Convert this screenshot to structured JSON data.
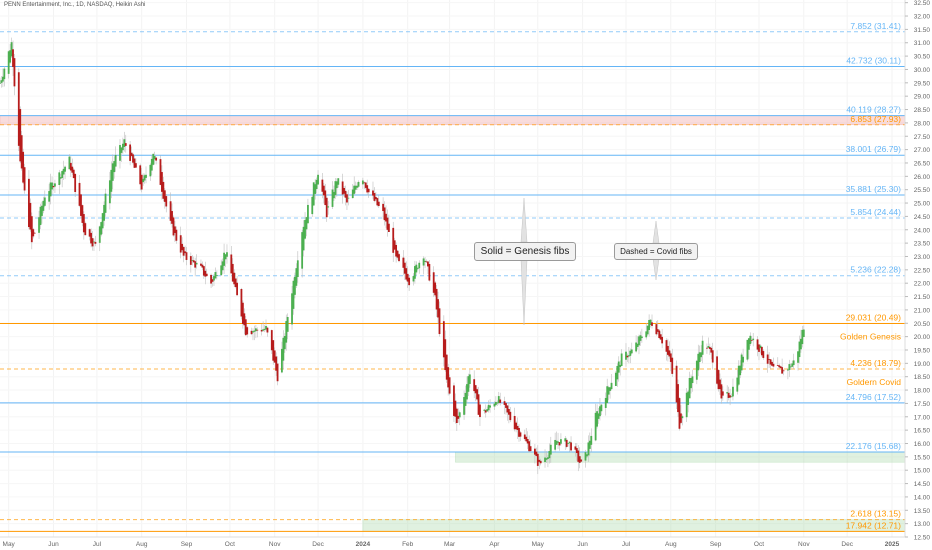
{
  "title": "PENN Entertainment, Inc., 1D, NASDAQ, Heikin Ashi",
  "chart_data": {
    "type": "candlestick",
    "symbol": "PENN",
    "interval": "1D",
    "exchange": "NASDAQ",
    "style": "Heikin Ashi",
    "ylim": [
      12.5,
      32.6
    ],
    "y_ticks": [
      "32.50",
      "32.00",
      "31.50",
      "31.00",
      "30.50",
      "30.00",
      "29.50",
      "29.00",
      "28.50",
      "28.00",
      "27.50",
      "27.00",
      "26.50",
      "26.00",
      "25.50",
      "25.00",
      "24.50",
      "24.00",
      "23.50",
      "23.00",
      "22.50",
      "22.00",
      "21.50",
      "21.00",
      "20.50",
      "20.00",
      "19.50",
      "19.00",
      "18.50",
      "18.00",
      "17.50",
      "17.00",
      "16.50",
      "16.00",
      "15.50",
      "15.00",
      "14.50",
      "14.00",
      "13.50",
      "13.00",
      "12.50"
    ],
    "x_ticks": [
      "May",
      "Jun",
      "Jul",
      "Aug",
      "Sep",
      "Oct",
      "Nov",
      "Dec",
      "2024",
      "Feb",
      "Mar",
      "Apr",
      "May",
      "Jun",
      "Jul",
      "Aug",
      "Sep",
      "Oct",
      "Nov",
      "Dec",
      "2025"
    ],
    "x_tick_values": [
      "2023-05-01",
      "2023-06-01",
      "2023-07-01",
      "2023-08-01",
      "2023-09-01",
      "2023-10-01",
      "2023-11-01",
      "2023-12-01",
      "2024-01-01",
      "2024-02-01",
      "2024-03-01",
      "2024-04-01",
      "2024-05-01",
      "2024-06-01",
      "2024-07-01",
      "2024-08-01",
      "2024-09-01",
      "2024-10-01",
      "2024-11-01",
      "2024-12-01",
      "2025-01-01"
    ],
    "x_range": [
      "2023-04-25",
      "2025-01-10"
    ],
    "price_path": [
      [
        "2023-04-25",
        29.5
      ],
      [
        "2023-05-03",
        31.0
      ],
      [
        "2023-05-09",
        26.5
      ],
      [
        "2023-05-17",
        23.5
      ],
      [
        "2023-05-26",
        25.3
      ],
      [
        "2023-06-12",
        26.6
      ],
      [
        "2023-06-22",
        24.0
      ],
      [
        "2023-06-30",
        23.4
      ],
      [
        "2023-07-12",
        26.5
      ],
      [
        "2023-07-20",
        27.3
      ],
      [
        "2023-08-01",
        25.6
      ],
      [
        "2023-08-09",
        26.9
      ],
      [
        "2023-08-21",
        24.2
      ],
      [
        "2023-08-30",
        23.0
      ],
      [
        "2023-09-10",
        22.6
      ],
      [
        "2023-09-18",
        22.0
      ],
      [
        "2023-09-28",
        23.2
      ],
      [
        "2023-10-12",
        20.2
      ],
      [
        "2023-10-26",
        20.3
      ],
      [
        "2023-11-03",
        18.5
      ],
      [
        "2023-11-20",
        24.0
      ],
      [
        "2023-12-01",
        26.2
      ],
      [
        "2023-12-07",
        24.6
      ],
      [
        "2023-12-14",
        25.9
      ],
      [
        "2023-12-21",
        25.0
      ],
      [
        "2023-12-31",
        26.1
      ],
      [
        "2024-01-05",
        25.4
      ],
      [
        "2024-01-15",
        24.6
      ],
      [
        "2024-01-24",
        22.9
      ],
      [
        "2024-02-02",
        22.1
      ],
      [
        "2024-02-12",
        23.1
      ],
      [
        "2024-02-20",
        21.4
      ],
      [
        "2024-02-28",
        18.3
      ],
      [
        "2024-03-06",
        16.7
      ],
      [
        "2024-03-15",
        18.7
      ],
      [
        "2024-03-22",
        17.0
      ],
      [
        "2024-04-03",
        17.7
      ],
      [
        "2024-04-17",
        16.5
      ],
      [
        "2024-04-26",
        15.8
      ],
      [
        "2024-05-02",
        15.2
      ],
      [
        "2024-05-14",
        16.1
      ],
      [
        "2024-05-23",
        16.0
      ],
      [
        "2024-06-01",
        15.1
      ],
      [
        "2024-06-10",
        17.0
      ],
      [
        "2024-06-18",
        18.0
      ],
      [
        "2024-06-28",
        19.2
      ],
      [
        "2024-07-06",
        19.5
      ],
      [
        "2024-07-18",
        20.6
      ],
      [
        "2024-07-25",
        20.0
      ],
      [
        "2024-08-01",
        19.0
      ],
      [
        "2024-08-07",
        16.7
      ],
      [
        "2024-08-14",
        18.3
      ],
      [
        "2024-08-24",
        19.9
      ],
      [
        "2024-08-30",
        19.2
      ],
      [
        "2024-09-05",
        17.6
      ],
      [
        "2024-09-12",
        17.9
      ],
      [
        "2024-09-24",
        20.1
      ],
      [
        "2024-10-02",
        19.5
      ],
      [
        "2024-10-10",
        18.8
      ],
      [
        "2024-10-18",
        18.7
      ],
      [
        "2024-10-26",
        19.1
      ],
      [
        "2024-11-01",
        20.4
      ]
    ],
    "levels": [
      {
        "label": "7.852 (31.41)",
        "price": 31.41,
        "color": "#64b5f6",
        "style": "dashed"
      },
      {
        "label": "42.732 (30.11)",
        "price": 30.11,
        "color": "#64b5f6",
        "style": "solid"
      },
      {
        "label": "40.119 (28.27)",
        "price": 28.27,
        "color": "#64b5f6",
        "style": "solid"
      },
      {
        "label": "6.853 (27.93)",
        "price": 27.93,
        "color": "#ff9800",
        "style": "dashed"
      },
      {
        "label": "38.001 (26.79)",
        "price": 26.79,
        "color": "#64b5f6",
        "style": "solid"
      },
      {
        "label": "35.881 (25.30)",
        "price": 25.3,
        "color": "#64b5f6",
        "style": "solid"
      },
      {
        "label": "5.854 (24.44)",
        "price": 24.44,
        "color": "#64b5f6",
        "style": "dashed"
      },
      {
        "label": "5.236 (22.28)",
        "price": 22.28,
        "color": "#64b5f6",
        "style": "dashed"
      },
      {
        "label": "29.031 (20.49)",
        "price": 20.49,
        "color": "#ff9800",
        "style": "solid"
      },
      {
        "label": "4.236 (18.79)",
        "price": 18.79,
        "color": "#ff9800",
        "style": "dashed"
      },
      {
        "label": "24.796 (17.52)",
        "price": 17.52,
        "color": "#64b5f6",
        "style": "solid"
      },
      {
        "label": "22.176 (15.68)",
        "price": 15.68,
        "color": "#64b5f6",
        "style": "solid"
      },
      {
        "label": "2.618 (13.15)",
        "price": 13.15,
        "color": "#ff9800",
        "style": "dashed"
      },
      {
        "label": "17.942 (12.71)",
        "price": 12.71,
        "color": "#ff9800",
        "style": "solid"
      }
    ],
    "level_tags": [
      {
        "label": "Golden Genesis",
        "price": 20.0,
        "color": "#ff9800"
      },
      {
        "label": "Goldern Covid",
        "price": 18.3,
        "color": "#ff9800"
      }
    ],
    "zones": [
      {
        "start": "2023-04-25",
        "end": "2025-01-10",
        "low": 27.93,
        "high": 28.27,
        "color": "#ef9a9a"
      },
      {
        "start": "2024-03-05",
        "end": "2025-01-10",
        "low": 15.3,
        "high": 15.68,
        "color": "#a5d6a7"
      },
      {
        "start": "2024-01-01",
        "end": "2025-01-10",
        "low": 12.71,
        "high": 13.15,
        "color": "#a5d6a7"
      }
    ],
    "annotations": [
      {
        "text": "Solid = Genesis fibs"
      },
      {
        "text": "Dashed = Covid fibs"
      }
    ],
    "up_color": "#4caf50",
    "down_color": "#b71c1c"
  }
}
